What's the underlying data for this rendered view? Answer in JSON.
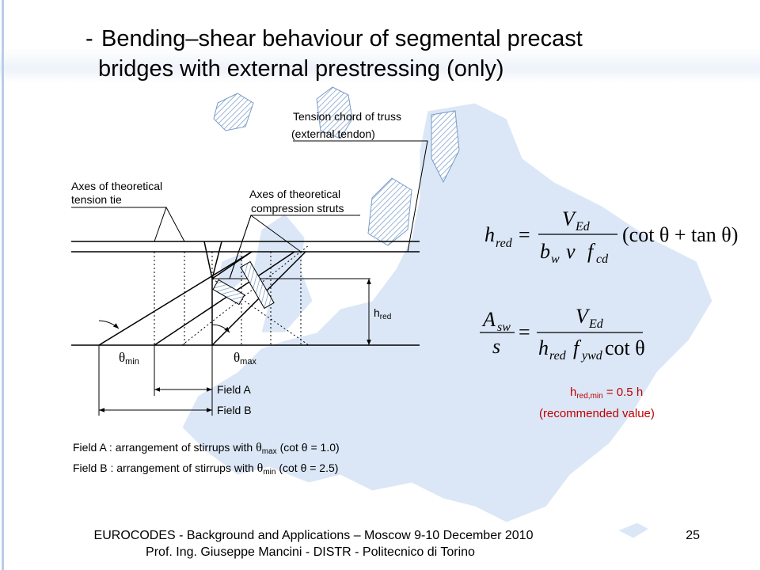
{
  "title": {
    "dash": "-",
    "line1": "Bending–shear behaviour of segmental precast",
    "line2": "bridges with external prestressing (only)"
  },
  "diagram": {
    "chord_label": {
      "line1": "Tension chord of truss",
      "line2": "(external tendon)"
    },
    "tie_label": {
      "line1": "Axes of theoretical",
      "line2": "tension tie"
    },
    "strut_label": {
      "line1": "Axes of theoretical",
      "line2": "compression struts"
    },
    "h_red": {
      "h": "h",
      "sub": "red"
    },
    "theta_min": {
      "theta": "θ",
      "sub": "min"
    },
    "theta_max": {
      "theta": "θ",
      "sub": "max"
    },
    "field_a": "Field A",
    "field_b": "Field B",
    "legend_a": {
      "start": "Field A : arrangement of stirrups with ",
      "theta": "θ",
      "sub": "max",
      "end": " (cot θ = 1.0)"
    },
    "legend_b": {
      "start": "Field B : arrangement of stirrups with ",
      "theta": "θ",
      "sub": "min",
      "end": " (cot θ = 2.5)"
    }
  },
  "formula1": {
    "h": "h",
    "red": "red",
    "eq": "=",
    "V": "V",
    "Ed": "Ed",
    "b": "b",
    "w": "w",
    "nu": "ν",
    "f": "f",
    "cd": "cd",
    "tail": "(cot θ + tan θ)"
  },
  "formula2": {
    "A": "A",
    "sw": "sw",
    "s": "s",
    "eq": "=",
    "V": "V",
    "Ed": "Ed",
    "h": "h",
    "red": "red",
    "f": "f",
    "ywd": "ywd",
    "cot": "cot θ"
  },
  "note": {
    "h": "h",
    "sub": "red,min",
    "rest": " = 0.5 h",
    "line2": "(recommended value)"
  },
  "footer": {
    "line1": "EUROCODES - Background and Applications – Moscow 9-10 December 2010",
    "line2": "Prof. Ing. Giuseppe Mancini - DISTR - Politecnico di Torino",
    "page": "25"
  }
}
